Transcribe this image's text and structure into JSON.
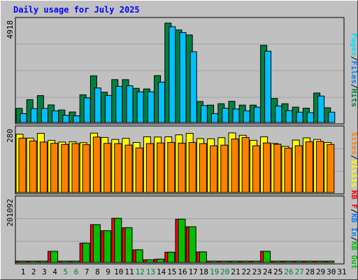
{
  "title": "Daily usage for July 2025",
  "colors": {
    "background": "#c0c0c0",
    "panel": "#c0c0c0",
    "gridline": "#a0a0a0",
    "title": "#0000ff",
    "hits": "#008040",
    "files": "#00c0ff",
    "pages": "#00e0ff",
    "sites": "#ff8000",
    "visits": "#ffff00",
    "kbin": "#0080ff",
    "kbout": "#00c000",
    "kbf": "#ff0000",
    "weekend_label": "#008040",
    "weekday_label": "#000000"
  },
  "chart_data": [
    {
      "type": "bar",
      "panel": "hits-files-pages",
      "ylim": [
        0,
        4918
      ],
      "ytick_label": "4918",
      "legend": [
        "Pages",
        "/",
        "Files",
        "/",
        "Hits"
      ],
      "categories": [
        "1",
        "2",
        "3",
        "4",
        "5",
        "6",
        "7",
        "8",
        "9",
        "10",
        "11",
        "12",
        "13",
        "14",
        "15",
        "16",
        "17",
        "18",
        "19",
        "20",
        "21",
        "22",
        "23",
        "24",
        "25",
        "26",
        "27",
        "28",
        "29",
        "30",
        "31"
      ],
      "series": [
        {
          "name": "Hits",
          "color": "#008040",
          "values": [
            700,
            1130,
            1330,
            870,
            620,
            520,
            1370,
            2310,
            1500,
            2120,
            2120,
            1690,
            1660,
            2320,
            4918,
            4580,
            4330,
            1040,
            860,
            930,
            1050,
            860,
            860,
            3820,
            1190,
            930,
            760,
            710,
            1460,
            730,
            0
          ]
        },
        {
          "name": "Files",
          "color": "#00c0ff",
          "values": [
            440,
            690,
            700,
            580,
            360,
            330,
            1220,
            1710,
            1340,
            1790,
            1820,
            1520,
            1520,
            2000,
            4740,
            4450,
            3500,
            840,
            440,
            710,
            670,
            580,
            760,
            3530,
            820,
            590,
            510,
            490,
            1310,
            510,
            0
          ]
        }
      ]
    },
    {
      "type": "bar",
      "panel": "visits-sites",
      "ylim": [
        0,
        280
      ],
      "ytick_label": "280",
      "legend": [
        "Sites",
        "/",
        "Visits"
      ],
      "categories": [
        "1",
        "2",
        "3",
        "4",
        "5",
        "6",
        "7",
        "8",
        "9",
        "10",
        "11",
        "12",
        "13",
        "14",
        "15",
        "16",
        "17",
        "18",
        "19",
        "20",
        "21",
        "22",
        "23",
        "24",
        "25",
        "26",
        "27",
        "28",
        "29",
        "30",
        "31"
      ],
      "series": [
        {
          "name": "Visits",
          "color": "#ffff00",
          "values": [
            268,
            250,
            272,
            240,
            232,
            233,
            229,
            273,
            253,
            244,
            249,
            230,
            256,
            255,
            256,
            265,
            272,
            248,
            247,
            252,
            274,
            263,
            240,
            256,
            225,
            212,
            241,
            251,
            244,
            230,
            0
          ]
        },
        {
          "name": "Sites",
          "color": "#ff8000",
          "values": [
            250,
            237,
            232,
            226,
            221,
            225,
            220,
            255,
            226,
            225,
            218,
            205,
            225,
            228,
            230,
            227,
            230,
            225,
            215,
            218,
            246,
            253,
            215,
            228,
            222,
            204,
            215,
            233,
            235,
            221,
            0
          ]
        }
      ]
    },
    {
      "type": "bar",
      "panel": "kbytes",
      "ylim": [
        0,
        201092
      ],
      "ytick_label": "201092",
      "legend": [
        "KB F",
        "/",
        "KB In",
        "/",
        "KB Out"
      ],
      "categories": [
        "1",
        "2",
        "3",
        "4",
        "5",
        "6",
        "7",
        "8",
        "9",
        "10",
        "11",
        "12",
        "13",
        "14",
        "15",
        "16",
        "17",
        "18",
        "19",
        "20",
        "21",
        "22",
        "23",
        "24",
        "25",
        "26",
        "27",
        "28",
        "29",
        "30",
        "31"
      ],
      "series": [
        {
          "name": "KB F",
          "color": "#ff0000",
          "values": [
            2200,
            2100,
            2400,
            37000,
            2200,
            3500,
            64000,
            125000,
            105000,
            146000,
            115000,
            42000,
            9000,
            11000,
            34000,
            143000,
            118000,
            35000,
            1800,
            2200,
            2500,
            2200,
            2700,
            37000,
            2400,
            2100,
            2000,
            2200,
            3100,
            2300,
            0
          ]
        },
        {
          "name": "KB Out",
          "color": "#00c000",
          "values": [
            2200,
            2100,
            2400,
            37000,
            2200,
            3500,
            64000,
            125000,
            105000,
            146000,
            115000,
            42000,
            9000,
            11000,
            34000,
            143000,
            118000,
            35000,
            1800,
            2200,
            2500,
            2200,
            2700,
            37000,
            2400,
            2100,
            2000,
            2200,
            3100,
            2300,
            0
          ]
        }
      ]
    }
  ],
  "weekend_days": [
    "5",
    "6",
    "12",
    "13",
    "19",
    "20",
    "26",
    "27"
  ]
}
